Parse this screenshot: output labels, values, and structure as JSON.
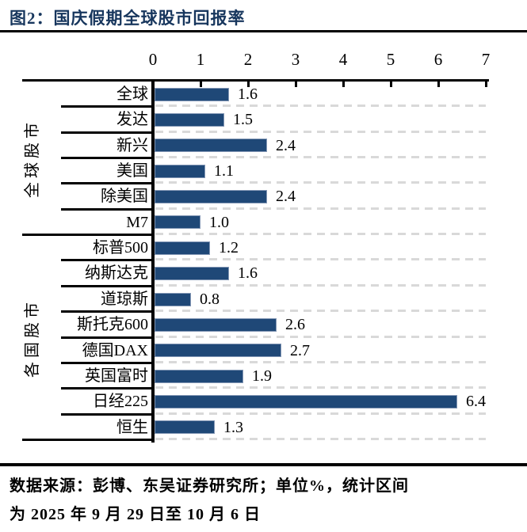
{
  "title": "图2：国庆假期全球股市回报率",
  "colors": {
    "title": "#17365D",
    "bar": "#1F4877",
    "bar_border": "#8296B4",
    "grid_dash": "#D9D9D9",
    "rule": "#000000"
  },
  "chart_data": {
    "type": "bar",
    "orientation": "horizontal",
    "title": "国庆假期全球股市回报率",
    "unit": "%",
    "xlim": [
      0,
      7
    ],
    "xticks": [
      0,
      1,
      2,
      3,
      4,
      5,
      6,
      7
    ],
    "axis_position": "top",
    "grid": "dashed horizontal row separators",
    "value_labels": true,
    "legend": "none",
    "groups": [
      {
        "label": "全球股市",
        "items": [
          {
            "label": "全球",
            "value": 1.6
          },
          {
            "label": "发达",
            "value": 1.5
          },
          {
            "label": "新兴",
            "value": 2.4
          },
          {
            "label": "美国",
            "value": 1.1
          },
          {
            "label": "除美国",
            "value": 2.4
          },
          {
            "label": "M7",
            "value": 1.0
          }
        ]
      },
      {
        "label": "各国股市",
        "items": [
          {
            "label": "标普500",
            "value": 1.2
          },
          {
            "label": "纳斯达克",
            "value": 1.6
          },
          {
            "label": "道琼斯",
            "value": 0.8
          },
          {
            "label": "斯托克600",
            "value": 2.6
          },
          {
            "label": "德国DAX",
            "value": 2.7
          },
          {
            "label": "英国富时",
            "value": 1.9
          },
          {
            "label": "日经225",
            "value": 6.4
          },
          {
            "label": "恒生",
            "value": 1.3
          }
        ]
      }
    ]
  },
  "footer": {
    "line1": "数据来源：彭博、东吴证券研究所；单位%，统计区间",
    "line2": "为 2025 年 9 月 29 日至 10 月 6 日"
  }
}
